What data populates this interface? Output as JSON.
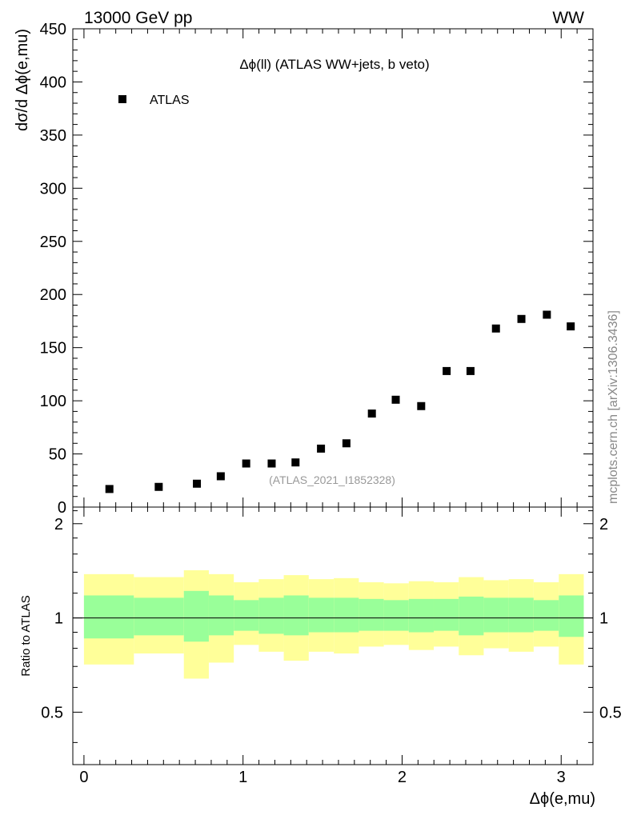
{
  "header": {
    "left": "13000 GeV pp",
    "right": "WW"
  },
  "side_label": "mcplots.cern.ch [arXiv:1306.3436]",
  "chart_data": {
    "type": "scatter",
    "title": "Δϕ(ll) (ATLAS WW+jets, b veto)",
    "analysis_label": "(ATLAS_2021_I1852328)",
    "xlabel": "Δϕ(e,mu)",
    "ylabel": "dσ/d Δϕ(e,mu)",
    "xlim": [
      -0.07,
      3.2
    ],
    "main": {
      "ylim": [
        0,
        450
      ],
      "yticks": [
        0,
        50,
        100,
        150,
        200,
        250,
        300,
        350,
        400,
        450
      ],
      "ytick_labels": [
        "0",
        "50",
        "100",
        "150",
        "200",
        "250",
        "300",
        "350",
        "400",
        "450"
      ],
      "legend": [
        {
          "name": "ATLAS",
          "marker": "square",
          "color": "#000000"
        }
      ],
      "series": [
        {
          "name": "ATLAS",
          "x": [
            0.16,
            0.47,
            0.71,
            0.86,
            1.02,
            1.18,
            1.33,
            1.49,
            1.65,
            1.81,
            1.96,
            2.12,
            2.28,
            2.43,
            2.59,
            2.75,
            2.91,
            3.06
          ],
          "values": [
            17,
            19,
            22,
            29,
            41,
            41,
            42,
            55,
            60,
            88,
            101,
            95,
            128,
            128,
            168,
            177,
            181,
            170
          ]
        }
      ]
    },
    "ratio": {
      "ylabel": "Ratio to ATLAS",
      "ylim": [
        0.34,
        2.26
      ],
      "yticks": [
        0.5,
        1,
        2
      ],
      "ytick_labels": [
        "0.5",
        "1",
        "2"
      ],
      "xticks": [
        0,
        1,
        2,
        3
      ],
      "xtick_labels": [
        "0",
        "1",
        "2",
        "3"
      ],
      "bins": [
        0,
        0.314,
        0.628,
        0.785,
        0.942,
        1.099,
        1.256,
        1.413,
        1.571,
        1.728,
        1.885,
        2.042,
        2.199,
        2.356,
        2.513,
        2.67,
        2.827,
        2.985,
        3.142
      ],
      "green_lo": [
        0.86,
        0.88,
        0.84,
        0.88,
        0.91,
        0.89,
        0.88,
        0.9,
        0.9,
        0.91,
        0.91,
        0.9,
        0.91,
        0.88,
        0.9,
        0.9,
        0.91,
        0.87
      ],
      "green_hi": [
        1.18,
        1.16,
        1.22,
        1.18,
        1.14,
        1.16,
        1.18,
        1.16,
        1.16,
        1.15,
        1.14,
        1.15,
        1.15,
        1.17,
        1.16,
        1.16,
        1.14,
        1.18
      ],
      "yellow_lo": [
        0.71,
        0.77,
        0.64,
        0.72,
        0.82,
        0.78,
        0.73,
        0.78,
        0.77,
        0.81,
        0.82,
        0.79,
        0.81,
        0.76,
        0.8,
        0.78,
        0.81,
        0.71
      ],
      "yellow_hi": [
        1.38,
        1.35,
        1.42,
        1.38,
        1.3,
        1.33,
        1.37,
        1.33,
        1.34,
        1.3,
        1.29,
        1.31,
        1.3,
        1.35,
        1.32,
        1.33,
        1.3,
        1.38
      ],
      "reference": 1,
      "colors": {
        "green": "#99ff99",
        "yellow": "#ffff99",
        "line": "#000000"
      }
    }
  }
}
